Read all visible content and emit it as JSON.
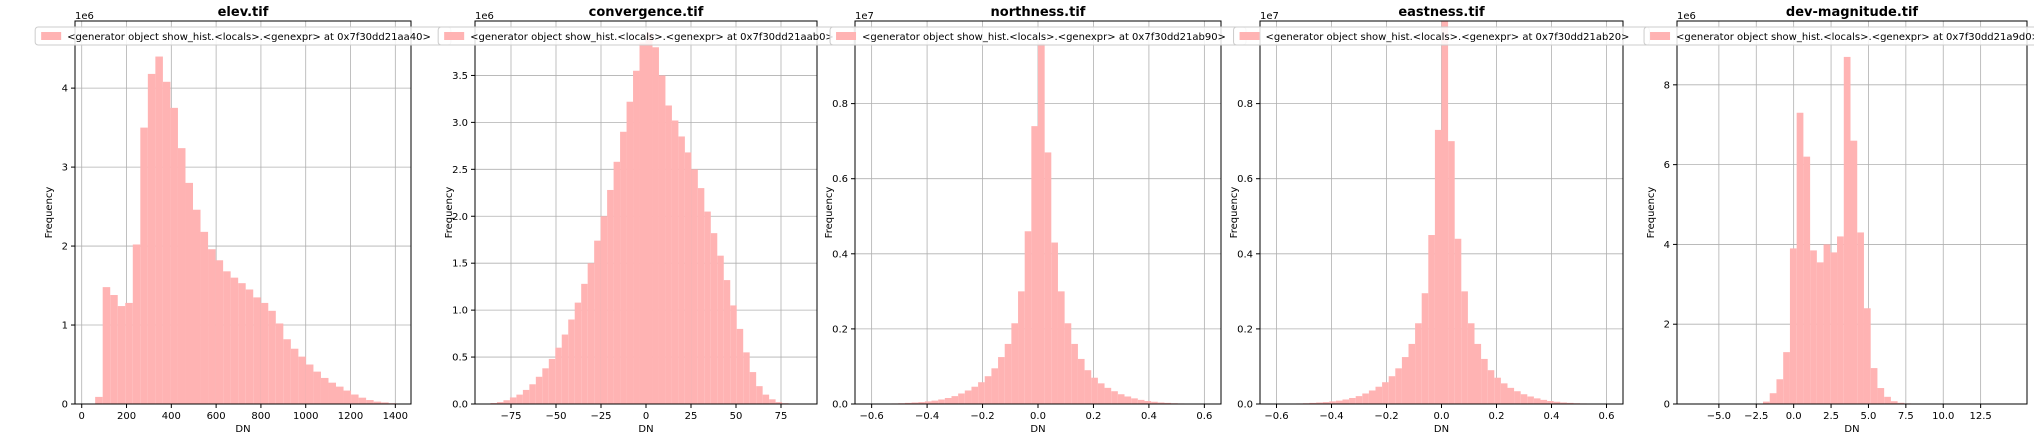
{
  "figure": {
    "legend_label": "<generator object show_hist.<locals>.<genexpr> at 0x7f30dd21aa40>"
  },
  "chart_data": [
    {
      "type": "bar",
      "title": "elev.tif",
      "xlabel": "DN",
      "ylabel": "Frequency",
      "y_offset_label": "1e6",
      "xlim": [
        -30,
        1470
      ],
      "ylim": [
        0,
        4.85
      ],
      "xticks": [
        0,
        200,
        400,
        600,
        800,
        1000,
        1200,
        1400
      ],
      "xtick_labels": [
        "0",
        "200",
        "400",
        "600",
        "800",
        "1000",
        "1200",
        "1400"
      ],
      "yticks": [
        0,
        1,
        2,
        3,
        4
      ],
      "ytick_labels": [
        "0",
        "1",
        "2",
        "3",
        "4"
      ],
      "grid": true,
      "legend": {
        "position": "top",
        "label": "<generator object show_hist.<locals>.<genexpr> at 0x7f30dd21aa40>"
      },
      "bins": {
        "start": 60,
        "width": 33.6
      },
      "values": [
        0.09,
        1.48,
        1.38,
        1.24,
        1.28,
        2.02,
        3.5,
        4.18,
        4.4,
        4.08,
        3.75,
        3.24,
        2.8,
        2.46,
        2.18,
        1.96,
        1.82,
        1.68,
        1.6,
        1.53,
        1.45,
        1.35,
        1.28,
        1.18,
        1.02,
        0.82,
        0.7,
        0.6,
        0.5,
        0.41,
        0.33,
        0.27,
        0.22,
        0.17,
        0.12,
        0.08,
        0.05,
        0.03,
        0.02,
        0.01,
        0.005,
        0.002
      ]
    },
    {
      "type": "bar",
      "title": "convergence.tif",
      "xlabel": "DN",
      "ylabel": "Frequency",
      "y_offset_label": "1e6",
      "xlim": [
        -95,
        95
      ],
      "ylim": [
        0,
        4.08
      ],
      "xticks": [
        -75,
        -50,
        -25,
        0,
        25,
        50,
        75
      ],
      "xtick_labels": [
        "−75",
        "−50",
        "−25",
        "0",
        "25",
        "50",
        "75"
      ],
      "yticks": [
        0,
        0.5,
        1,
        1.5,
        2,
        2.5,
        3,
        3.5
      ],
      "ytick_labels": [
        "0.0",
        "0.5",
        "1.0",
        "1.5",
        "2.0",
        "2.5",
        "3.0",
        "3.5"
      ],
      "grid": true,
      "legend": {
        "position": "top",
        "label": "<generator object show_hist.<locals>.<genexpr> at 0x7f30dd21aab0>"
      },
      "bins": {
        "start": -90,
        "width": 3.6
      },
      "values": [
        0.003,
        0.01,
        0.02,
        0.04,
        0.07,
        0.1,
        0.15,
        0.21,
        0.29,
        0.38,
        0.48,
        0.6,
        0.74,
        0.9,
        1.08,
        1.28,
        1.5,
        1.74,
        2.0,
        2.28,
        2.58,
        2.9,
        3.22,
        3.55,
        3.85,
        3.95,
        3.8,
        3.5,
        3.18,
        3.02,
        2.85,
        2.68,
        2.5,
        2.3,
        2.05,
        1.82,
        1.58,
        1.32,
        1.05,
        0.8,
        0.55,
        0.34,
        0.19,
        0.1,
        0.05,
        0.02,
        0.008,
        0.003,
        0.001,
        0.001
      ]
    },
    {
      "type": "bar",
      "title": "northness.tif",
      "xlabel": "DN",
      "ylabel": "Frequency",
      "y_offset_label": "1e7",
      "xlim": [
        -0.66,
        0.66
      ],
      "ylim": [
        0,
        1.02
      ],
      "xticks": [
        -0.6,
        -0.4,
        -0.2,
        0,
        0.2,
        0.4,
        0.6
      ],
      "xtick_labels": [
        "−0.6",
        "−0.4",
        "−0.2",
        "0.0",
        "0.2",
        "0.4",
        "0.6"
      ],
      "yticks": [
        0,
        0.2,
        0.4,
        0.6,
        0.8
      ],
      "ytick_labels": [
        "0.0",
        "0.2",
        "0.4",
        "0.6",
        "0.8"
      ],
      "grid": true,
      "legend": {
        "position": "top",
        "label": "<generator object show_hist.<locals>.<genexpr> at 0x7f30dd21ab90>"
      },
      "bins": {
        "start": -0.6,
        "width": 0.024
      },
      "values": [
        0.0003,
        0.0005,
        0.001,
        0.0015,
        0.002,
        0.003,
        0.004,
        0.005,
        0.007,
        0.009,
        0.012,
        0.016,
        0.021,
        0.028,
        0.036,
        0.046,
        0.058,
        0.074,
        0.095,
        0.125,
        0.16,
        0.215,
        0.3,
        0.46,
        0.74,
        0.96,
        0.67,
        0.43,
        0.3,
        0.215,
        0.16,
        0.12,
        0.09,
        0.07,
        0.055,
        0.043,
        0.034,
        0.026,
        0.02,
        0.015,
        0.011,
        0.008,
        0.006,
        0.004,
        0.003,
        0.002,
        0.0015,
        0.001,
        0.0006,
        0.0003
      ]
    },
    {
      "type": "bar",
      "title": "eastness.tif",
      "xlabel": "DN",
      "ylabel": "Frequency",
      "y_offset_label": "1e7",
      "xlim": [
        -0.66,
        0.66
      ],
      "ylim": [
        0,
        1.02
      ],
      "xticks": [
        -0.6,
        -0.4,
        -0.2,
        0,
        0.2,
        0.4,
        0.6
      ],
      "xtick_labels": [
        "−0.6",
        "−0.4",
        "−0.2",
        "0.0",
        "0.2",
        "0.4",
        "0.6"
      ],
      "yticks": [
        0,
        0.2,
        0.4,
        0.6,
        0.8
      ],
      "ytick_labels": [
        "0.0",
        "0.2",
        "0.4",
        "0.6",
        "0.8"
      ],
      "grid": true,
      "legend": {
        "position": "top",
        "label": "<generator object show_hist.<locals>.<genexpr> at 0x7f30dd21ab20>"
      },
      "bins": {
        "start": -0.6,
        "width": 0.024
      },
      "values": [
        0.0003,
        0.0005,
        0.001,
        0.0015,
        0.002,
        0.003,
        0.004,
        0.005,
        0.007,
        0.009,
        0.012,
        0.016,
        0.021,
        0.028,
        0.036,
        0.046,
        0.058,
        0.074,
        0.095,
        0.125,
        0.16,
        0.215,
        0.295,
        0.45,
        0.73,
        1.02,
        0.7,
        0.44,
        0.3,
        0.215,
        0.16,
        0.12,
        0.09,
        0.07,
        0.055,
        0.043,
        0.034,
        0.026,
        0.02,
        0.015,
        0.011,
        0.008,
        0.006,
        0.004,
        0.003,
        0.002,
        0.0015,
        0.001,
        0.0006,
        0.0003
      ]
    },
    {
      "type": "bar",
      "title": "dev-magnitude.tif",
      "xlabel": "DN",
      "ylabel": "Frequency",
      "y_offset_label": "1e6",
      "xlim": [
        -7.8,
        15.6
      ],
      "ylim": [
        0,
        9.6
      ],
      "xticks": [
        -5,
        -2.5,
        0,
        2.5,
        5,
        7.5,
        10,
        12.5
      ],
      "xtick_labels": [
        "−5.0",
        "−2.5",
        "0.0",
        "2.5",
        "5.0",
        "7.5",
        "10.0",
        "12.5"
      ],
      "yticks": [
        0,
        2,
        4,
        6,
        8
      ],
      "ytick_labels": [
        "0",
        "2",
        "4",
        "6",
        "8"
      ],
      "grid": true,
      "legend": {
        "position": "top",
        "label": "<generator object show_hist.<locals>.<genexpr> at 0x7f30dd21a9d0>"
      },
      "bins": {
        "start": -7,
        "width": 0.45
      },
      "values": [
        0,
        0,
        0,
        0,
        0,
        0,
        0,
        0,
        0,
        0,
        0,
        0.06,
        0.27,
        0.62,
        1.3,
        3.9,
        7.3,
        6.2,
        3.85,
        3.55,
        4.0,
        3.8,
        4.2,
        8.7,
        6.6,
        4.3,
        2.4,
        0.9,
        0.4,
        0.18,
        0.07,
        0.03,
        0.015,
        0.008,
        0.004,
        0.002,
        0.001,
        0.001,
        0.0005,
        0.0005,
        0.0003,
        0.0003,
        0.0002,
        0.0002,
        0.0001,
        0.0001,
        0.0001,
        0.0001,
        0.0001,
        0
      ]
    }
  ]
}
